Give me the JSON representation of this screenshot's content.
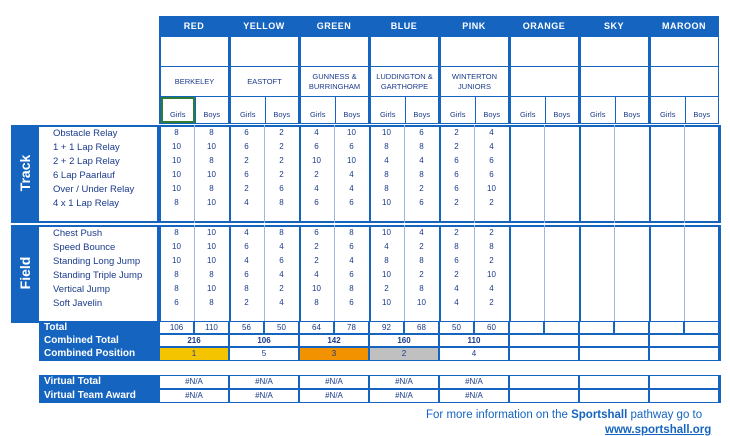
{
  "teams": [
    {
      "name": "RED",
      "school": "BERKELEY",
      "girls": "Girls",
      "boys": "Boys"
    },
    {
      "name": "YELLOW",
      "school": "EASTOFT",
      "girls": "Girls",
      "boys": "Boys"
    },
    {
      "name": "GREEN",
      "school": "GUNNESS & BURRINGHAM",
      "girls": "Girls",
      "boys": "Boys"
    },
    {
      "name": "BLUE",
      "school": "LUDDINGTON & GARTHORPE",
      "girls": "Girls",
      "boys": "Boys"
    },
    {
      "name": "PINK",
      "school": "WINTERTON JUNIORS",
      "girls": "Girls",
      "boys": "Boys"
    },
    {
      "name": "ORANGE",
      "school": "",
      "girls": "Girls",
      "boys": "Boys"
    },
    {
      "name": "SKY",
      "school": "",
      "girls": "Girls",
      "boys": "Boys"
    },
    {
      "name": "MAROON",
      "school": "",
      "girls": "Girls",
      "boys": "Boys"
    }
  ],
  "sections": {
    "track": "Track",
    "field": "Field"
  },
  "track_events": [
    {
      "name": "Obstacle Relay",
      "scores": [
        "8",
        "8",
        "6",
        "2",
        "4",
        "10",
        "10",
        "6",
        "2",
        "4"
      ]
    },
    {
      "name": "1 + 1 Lap Relay",
      "scores": [
        "10",
        "10",
        "6",
        "2",
        "6",
        "6",
        "8",
        "8",
        "2",
        "4"
      ]
    },
    {
      "name": "2 + 2 Lap Relay",
      "scores": [
        "10",
        "8",
        "2",
        "2",
        "10",
        "10",
        "4",
        "4",
        "6",
        "6"
      ]
    },
    {
      "name": "6 Lap Paarlauf",
      "scores": [
        "10",
        "10",
        "6",
        "2",
        "2",
        "4",
        "8",
        "8",
        "6",
        "6"
      ]
    },
    {
      "name": "Over / Under Relay",
      "scores": [
        "10",
        "8",
        "2",
        "6",
        "4",
        "4",
        "8",
        "2",
        "6",
        "10"
      ]
    },
    {
      "name": "4 x 1 Lap Relay",
      "scores": [
        "8",
        "10",
        "4",
        "8",
        "6",
        "6",
        "10",
        "6",
        "2",
        "2"
      ]
    }
  ],
  "field_events": [
    {
      "name": "Chest Push",
      "scores": [
        "8",
        "10",
        "4",
        "8",
        "6",
        "8",
        "10",
        "4",
        "2",
        "2"
      ]
    },
    {
      "name": "Speed Bounce",
      "scores": [
        "10",
        "10",
        "6",
        "4",
        "2",
        "6",
        "4",
        "2",
        "8",
        "8"
      ]
    },
    {
      "name": "Standing Long Jump",
      "scores": [
        "10",
        "10",
        "4",
        "6",
        "2",
        "4",
        "8",
        "8",
        "6",
        "2"
      ]
    },
    {
      "name": "Standing Triple Jump",
      "scores": [
        "8",
        "8",
        "6",
        "4",
        "4",
        "6",
        "10",
        "2",
        "2",
        "10"
      ]
    },
    {
      "name": "Vertical Jump",
      "scores": [
        "8",
        "10",
        "8",
        "2",
        "10",
        "8",
        "2",
        "8",
        "4",
        "4"
      ]
    },
    {
      "name": "Soft Javelin",
      "scores": [
        "6",
        "8",
        "2",
        "4",
        "8",
        "6",
        "10",
        "10",
        "4",
        "2"
      ]
    }
  ],
  "totals": {
    "label": "Total",
    "values": [
      "106",
      "110",
      "56",
      "50",
      "64",
      "78",
      "92",
      "68",
      "50",
      "60"
    ],
    "combined_label": "Combined Total",
    "combined": [
      "216",
      "106",
      "142",
      "160",
      "110"
    ],
    "position_label": "Combined Position",
    "positions": [
      "1",
      "5",
      "3",
      "2",
      "4"
    ]
  },
  "virtual": {
    "total_label": "Virtual Total",
    "award_label": "Virtual Team Award",
    "total_values": [
      "#N/A",
      "#N/A",
      "#N/A",
      "#N/A",
      "#N/A"
    ],
    "award_values": [
      "#N/A",
      "#N/A",
      "#N/A",
      "#N/A",
      "#N/A"
    ]
  },
  "footer": {
    "line1_pre": "For more information on the ",
    "line1_bold": "Sportshall",
    "line1_post": " pathway go to",
    "line2": "www.sportshall.org"
  },
  "colors": {
    "blue": "#1565c0",
    "gold": "#f5c400",
    "orange": "#f39200",
    "silver": "#c0c0c0"
  }
}
